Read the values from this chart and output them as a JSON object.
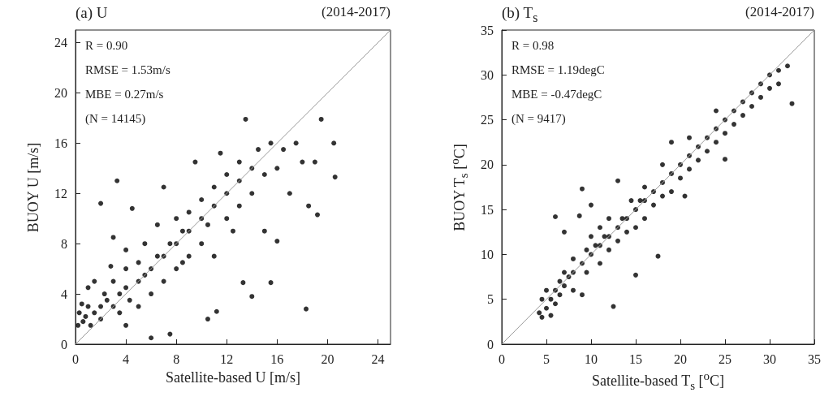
{
  "chart_data": [
    {
      "type": "scatter",
      "title": "(a) U",
      "subtitle": "(2014-2017)",
      "xlabel": "Satellite-based U [m/s]",
      "ylabel": "BUOY U [m/s]",
      "annotations": [
        "R = 0.90",
        "RMSE = 1.53m/s",
        "MBE = 0.27m/s",
        "(N = 14145)"
      ],
      "xlim": [
        0,
        25
      ],
      "ylim": [
        0,
        25
      ],
      "xticks": [
        0,
        4,
        8,
        12,
        16,
        20,
        24
      ],
      "yticks": [
        0,
        4,
        8,
        12,
        16,
        20,
        24
      ],
      "grid": false,
      "marker": "circle",
      "series": [
        {
          "type": "scatter",
          "color": "#000000",
          "x": [
            0.2,
            0.3,
            0.5,
            0.6,
            0.8,
            1,
            1,
            1.2,
            1.5,
            1.5,
            2,
            2,
            2,
            2.3,
            2.5,
            2.8,
            3,
            3,
            3,
            3.3,
            3.5,
            3.5,
            4,
            4,
            4,
            4,
            4.3,
            4.5,
            5,
            5,
            5,
            5.5,
            5.5,
            6,
            6,
            6,
            6.5,
            6.5,
            7,
            7,
            7,
            7.5,
            7.5,
            8,
            8,
            8,
            8.5,
            8.5,
            9,
            9,
            9,
            9.5,
            10,
            10,
            10,
            10.5,
            10.5,
            11,
            11,
            11,
            11.2,
            11.5,
            12,
            12,
            12,
            12.5,
            13,
            13,
            13,
            13.3,
            13.5,
            14,
            14,
            14,
            14.5,
            15,
            15,
            15.5,
            15.5,
            16,
            16,
            16.5,
            17,
            17.5,
            18,
            18.3,
            18.5,
            19,
            19.2,
            19.5,
            20.5,
            20.6
          ],
          "values": [
            1.5,
            2.5,
            3.2,
            1.8,
            2.2,
            4.5,
            3,
            1.5,
            2.5,
            5,
            3,
            2,
            11.2,
            4,
            3.5,
            6.2,
            3,
            5,
            8.5,
            13,
            4,
            2.5,
            4.5,
            6,
            7.5,
            1.5,
            3.5,
            10.8,
            5,
            6.5,
            3,
            5.5,
            8,
            6,
            4,
            0.5,
            7,
            9.5,
            7,
            5,
            12.5,
            8,
            0.8,
            8,
            6,
            10,
            9,
            6.5,
            9,
            10.5,
            7,
            14.5,
            10,
            8,
            11.5,
            2,
            9.5,
            11,
            12.5,
            7,
            2.6,
            15.2,
            12,
            10,
            13.5,
            9,
            13,
            11,
            14.5,
            4.9,
            17.9,
            12,
            14,
            3.8,
            15.5,
            13.5,
            9,
            16,
            4.9,
            14,
            8.2,
            15.5,
            12,
            16,
            14.5,
            2.8,
            11,
            14.5,
            10.3,
            17.9,
            16,
            13.3
          ]
        },
        {
          "type": "line",
          "color": "#999999",
          "x": [
            0,
            25
          ],
          "values": [
            0,
            25
          ],
          "marker": "none",
          "line_style": "solid"
        }
      ]
    },
    {
      "type": "scatter",
      "title": "(b) T$_{s}$",
      "subtitle": "(2014-2017)",
      "xlabel": "Satellite-based T$_{s}$ [$^{o}$C]",
      "ylabel": "BUOY T$_{s}$ [$^{o}$C]",
      "annotations": [
        "R = 0.98",
        "RMSE = 1.19degC",
        "MBE = -0.47degC",
        "(N = 9417)"
      ],
      "xlim": [
        0,
        35
      ],
      "ylim": [
        0,
        35
      ],
      "xticks": [
        0,
        5,
        10,
        15,
        20,
        25,
        30,
        35
      ],
      "yticks": [
        0,
        5,
        10,
        15,
        20,
        25,
        30,
        35
      ],
      "grid": false,
      "marker": "circle",
      "series": [
        {
          "type": "scatter",
          "color": "#000000",
          "x": [
            4.2,
            4.5,
            4.5,
            5,
            5,
            5.5,
            5.5,
            6,
            6,
            6,
            6.5,
            6.5,
            7,
            7,
            7,
            7.5,
            8,
            8,
            8,
            8.7,
            9,
            9,
            9,
            9.5,
            9.5,
            10,
            10,
            10,
            10.5,
            11,
            11,
            11,
            11.5,
            12,
            12,
            12,
            12.5,
            13,
            13,
            13,
            13.5,
            14,
            14,
            14.5,
            15,
            15,
            15,
            15.5,
            16,
            16,
            16,
            17,
            17,
            17.5,
            18,
            18,
            18,
            19,
            19,
            19,
            20,
            20,
            20.5,
            21,
            21,
            21,
            22,
            22,
            23,
            23,
            24,
            24,
            24,
            25,
            25,
            25,
            26,
            26,
            27,
            27,
            28,
            28,
            29,
            29,
            30,
            30,
            31,
            31,
            32,
            32.5
          ],
          "values": [
            3.5,
            5,
            3,
            4,
            6,
            5,
            3.2,
            6,
            4.5,
            14.2,
            7,
            5.5,
            6.5,
            8,
            12.5,
            7.5,
            8,
            6,
            9.5,
            14.3,
            9,
            17.3,
            5.5,
            10.5,
            8,
            10,
            12,
            15.5,
            11,
            11,
            13,
            9,
            12,
            12,
            14,
            10.5,
            4.2,
            13,
            11.5,
            18.2,
            14,
            14,
            12.5,
            16,
            15,
            13,
            7.7,
            16,
            16,
            14,
            17.5,
            17,
            15.5,
            9.8,
            18,
            16.5,
            20,
            19,
            17,
            22.5,
            20,
            18.5,
            16.5,
            21,
            19.5,
            23,
            22,
            20.5,
            23,
            21.5,
            24,
            22.5,
            26,
            25,
            23.5,
            20.6,
            26,
            24.5,
            27,
            25.5,
            28,
            26.5,
            29,
            27.5,
            30,
            28.5,
            30.5,
            29,
            31,
            26.8
          ]
        },
        {
          "type": "line",
          "color": "#999999",
          "x": [
            0,
            35
          ],
          "values": [
            0,
            35
          ],
          "marker": "none",
          "line_style": "solid"
        }
      ]
    }
  ]
}
